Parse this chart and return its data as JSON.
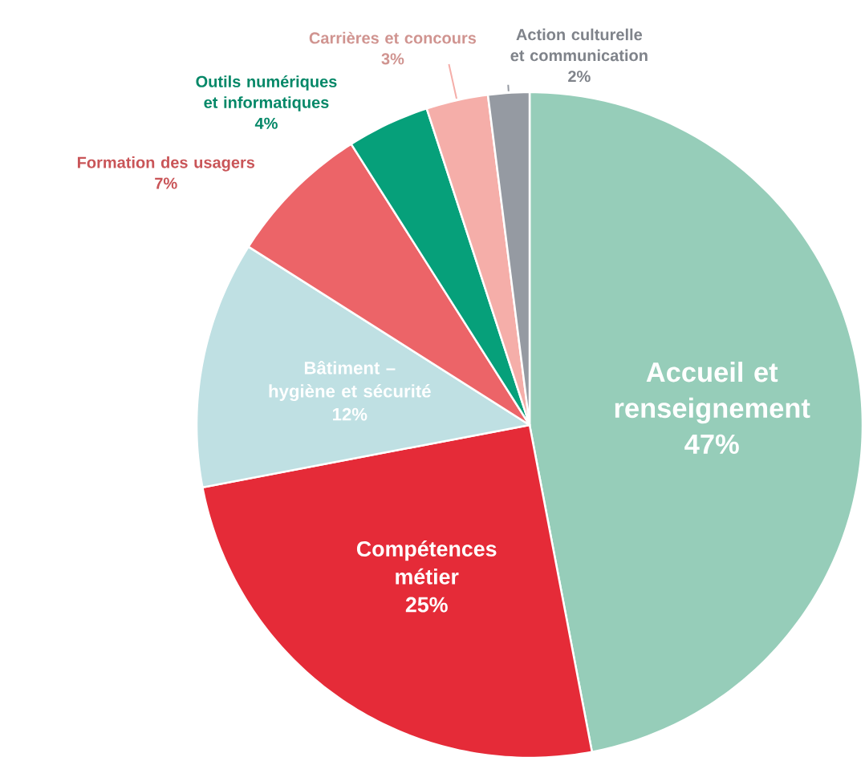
{
  "chart_data": {
    "type": "pie",
    "categories": [
      "Accueil et renseignement",
      "Compétences métier",
      "Bâtiment – hygiène et sécurité",
      "Formation des usagers",
      "Outils numériques et informatiques",
      "Carrières et concours",
      "Action culturelle et communication"
    ],
    "values": [
      47,
      25,
      12,
      7,
      4,
      3,
      2
    ],
    "value_labels": [
      "47%",
      "25%",
      "12%",
      "7%",
      "4%",
      "3%",
      "2%"
    ],
    "colors": [
      "#96cdb9",
      "#e52b38",
      "#bfe0e3",
      "#ec6468",
      "#06a07a",
      "#f5aea9",
      "#959aa2"
    ]
  }
}
